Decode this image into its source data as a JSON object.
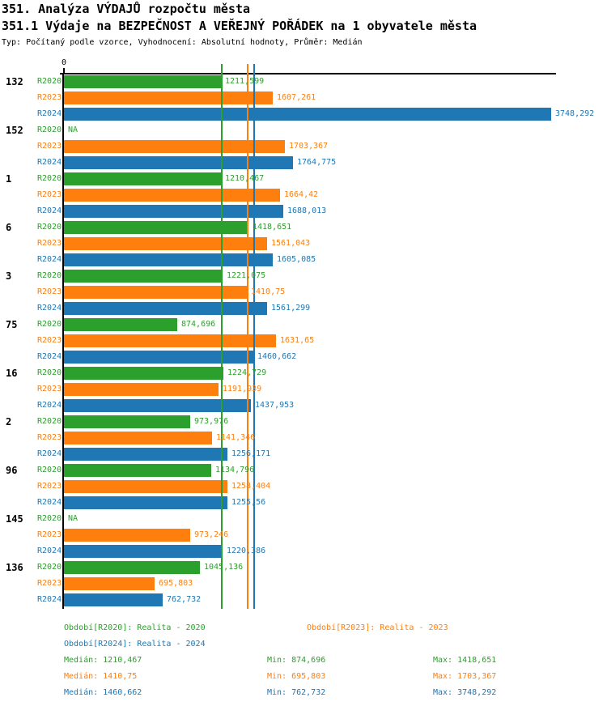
{
  "header": {
    "title": "351. Analýza VÝDAJŮ rozpočtu města",
    "subtitle": "351.1 Výdaje na BEZPEČNOST A VEŘEJNÝ POŘÁDEK na 1 obyvatele města",
    "meta": "Typ: Počítaný podle vzorce, Vyhodnocení: Absolutní hodnoty, Průměr: Medián"
  },
  "colors": {
    "r2020_green": "#2CA02C",
    "r2023_orange": "#FF7F0E",
    "r2024_blue": "#1F77B4",
    "axis_black": "#000000",
    "background": "#FFFFFF"
  },
  "chart_data": {
    "type": "bar",
    "orientation": "horizontal",
    "origin_tick_label": "0",
    "xlim": [
      0,
      3790
    ],
    "grid": false,
    "series": [
      "R2020",
      "R2023",
      "R2024"
    ],
    "series_colors": [
      "#2CA02C",
      "#FF7F0E",
      "#1F77B4"
    ],
    "na_label": "NA",
    "median_reference_lines": [
      1210.467,
      1410.75,
      1460.662
    ],
    "groups": [
      {
        "label": "132",
        "values": [
          1211.599,
          1607.261,
          3748.292
        ],
        "value_labels": [
          "1211,599",
          "1607,261",
          "3748,292"
        ]
      },
      {
        "label": "152",
        "values": [
          null,
          1703.367,
          1764.775
        ],
        "value_labels": [
          null,
          "1703,367",
          "1764,775"
        ]
      },
      {
        "label": "1",
        "values": [
          1210.467,
          1664.42,
          1688.013
        ],
        "value_labels": [
          "1210,467",
          "1664,42",
          "1688,013"
        ]
      },
      {
        "label": "6",
        "values": [
          1418.651,
          1561.043,
          1605.085
        ],
        "value_labels": [
          "1418,651",
          "1561,043",
          "1605,085"
        ]
      },
      {
        "label": "3",
        "values": [
          1221.075,
          1410.75,
          1561.299
        ],
        "value_labels": [
          "1221,075",
          "1410,75",
          "1561,299"
        ]
      },
      {
        "label": "75",
        "values": [
          874.696,
          1631.65,
          1460.662
        ],
        "value_labels": [
          "874,696",
          "1631,65",
          "1460,662"
        ]
      },
      {
        "label": "16",
        "values": [
          1224.729,
          1191.939,
          1437.953
        ],
        "value_labels": [
          "1224,729",
          "1191,939",
          "1437,953"
        ]
      },
      {
        "label": "2",
        "values": [
          973.976,
          1141.346,
          1256.171
        ],
        "value_labels": [
          "973,976",
          "1141,346",
          "1256,171"
        ]
      },
      {
        "label": "96",
        "values": [
          1134.796,
          1258.404,
          1255.56
        ],
        "value_labels": [
          "1134,796",
          "1258,404",
          "1255,56"
        ]
      },
      {
        "label": "145",
        "values": [
          null,
          973.246,
          1220.386
        ],
        "value_labels": [
          null,
          "973,246",
          "1220,386"
        ]
      },
      {
        "label": "136",
        "values": [
          1045.136,
          695.803,
          762.732
        ],
        "value_labels": [
          "1045,136",
          "695,803",
          "762,732"
        ]
      }
    ]
  },
  "legend": {
    "r2020": "Období[R2020]: Realita - 2020",
    "r2023": "Období[R2023]: Realita - 2023",
    "r2024": "Období[R2024]: Realita - 2024"
  },
  "stats": {
    "r2020": {
      "median": "Medián: 1210,467",
      "min": "Min: 874,696",
      "max": "Max: 1418,651"
    },
    "r2023": {
      "median": "Medián: 1410,75",
      "min": "Min: 695,803",
      "max": "Max: 1703,367"
    },
    "r2024": {
      "median": "Medián: 1460,662",
      "min": "Min: 762,732",
      "max": "Max: 3748,292"
    }
  }
}
